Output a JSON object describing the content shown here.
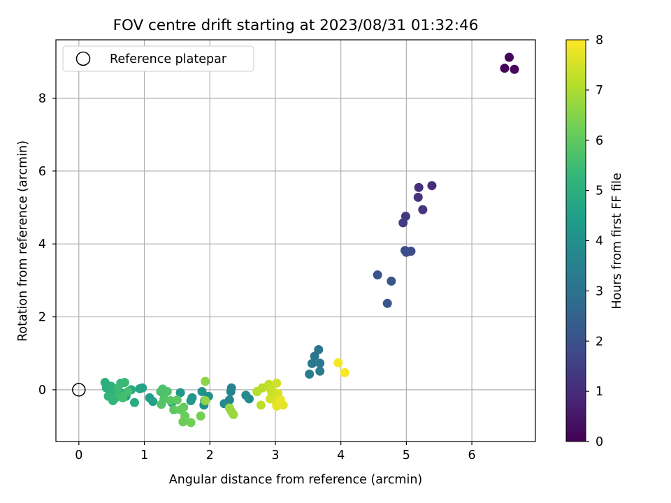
{
  "chart_data": {
    "type": "scatter",
    "title": "FOV centre drift starting at 2023/08/31 01:32:46",
    "xlabel": "Angular distance from reference (arcmin)",
    "ylabel": "Rotation from reference (arcmin)",
    "xlim": [
      -0.35,
      6.97
    ],
    "ylim": [
      -1.42,
      9.6
    ],
    "xticks": [
      "0",
      "1",
      "2",
      "3",
      "4",
      "5",
      "6"
    ],
    "yticks": [
      "0",
      "2",
      "4",
      "6",
      "8"
    ],
    "grid": true,
    "legend": {
      "location": "upper-left",
      "entries": [
        "Reference platepar"
      ]
    },
    "reference_point": {
      "x": 0,
      "y": 0
    },
    "colorbar": {
      "label": "Hours from first FF file",
      "min": 0,
      "max": 8,
      "ticks": [
        "0",
        "1",
        "2",
        "3",
        "4",
        "5",
        "6",
        "7",
        "8"
      ],
      "colormap": "viridis",
      "stops": [
        "#440154",
        "#482878",
        "#3e4989",
        "#31688e",
        "#26828e",
        "#1f9e89",
        "#35b779",
        "#6ece58",
        "#b5de2b",
        "#fde725"
      ]
    },
    "points": [
      {
        "x": 6.5,
        "y": 8.82,
        "h": 0.05
      },
      {
        "x": 6.57,
        "y": 9.12,
        "h": 0.1
      },
      {
        "x": 6.65,
        "y": 8.79,
        "h": 0.15
      },
      {
        "x": 5.39,
        "y": 5.6,
        "h": 1.0
      },
      {
        "x": 5.19,
        "y": 5.55,
        "h": 1.1
      },
      {
        "x": 5.18,
        "y": 5.28,
        "h": 1.15
      },
      {
        "x": 5.25,
        "y": 4.94,
        "h": 1.2
      },
      {
        "x": 4.99,
        "y": 4.76,
        "h": 1.35
      },
      {
        "x": 4.95,
        "y": 4.58,
        "h": 1.4
      },
      {
        "x": 4.98,
        "y": 3.82,
        "h": 1.9
      },
      {
        "x": 5.07,
        "y": 3.8,
        "h": 1.85
      },
      {
        "x": 5.0,
        "y": 3.77,
        "h": 1.95
      },
      {
        "x": 4.56,
        "y": 3.15,
        "h": 2.1
      },
      {
        "x": 4.77,
        "y": 2.98,
        "h": 2.15
      },
      {
        "x": 4.71,
        "y": 2.37,
        "h": 2.2
      },
      {
        "x": 3.66,
        "y": 1.1,
        "h": 3.1
      },
      {
        "x": 3.6,
        "y": 0.92,
        "h": 3.15
      },
      {
        "x": 3.56,
        "y": 0.72,
        "h": 3.2
      },
      {
        "x": 3.68,
        "y": 0.73,
        "h": 3.25
      },
      {
        "x": 3.52,
        "y": 0.43,
        "h": 3.3
      },
      {
        "x": 3.68,
        "y": 0.51,
        "h": 3.35
      },
      {
        "x": 3.96,
        "y": 0.74,
        "h": 7.9
      },
      {
        "x": 4.06,
        "y": 0.47,
        "h": 7.95
      },
      {
        "x": 2.33,
        "y": 0.05,
        "h": 3.6
      },
      {
        "x": 2.32,
        "y": -0.05,
        "h": 3.65
      },
      {
        "x": 2.3,
        "y": -0.28,
        "h": 3.7
      },
      {
        "x": 2.22,
        "y": -0.38,
        "h": 3.75
      },
      {
        "x": 2.55,
        "y": -0.15,
        "h": 3.8
      },
      {
        "x": 2.6,
        "y": -0.25,
        "h": 3.85
      },
      {
        "x": 1.92,
        "y": -0.3,
        "h": 3.9
      },
      {
        "x": 1.91,
        "y": -0.42,
        "h": 3.95
      },
      {
        "x": 1.98,
        "y": -0.18,
        "h": 4.0
      },
      {
        "x": 1.88,
        "y": -0.05,
        "h": 4.1
      },
      {
        "x": 1.73,
        "y": -0.22,
        "h": 4.2
      },
      {
        "x": 1.71,
        "y": -0.3,
        "h": 4.25
      },
      {
        "x": 1.55,
        "y": -0.08,
        "h": 4.3
      },
      {
        "x": 1.42,
        "y": -0.35,
        "h": 4.4
      },
      {
        "x": 1.08,
        "y": -0.22,
        "h": 4.5
      },
      {
        "x": 1.13,
        "y": -0.32,
        "h": 4.55
      },
      {
        "x": 0.97,
        "y": 0.05,
        "h": 4.6
      },
      {
        "x": 0.93,
        "y": 0.03,
        "h": 4.65
      },
      {
        "x": 0.72,
        "y": -0.18,
        "h": 4.7
      },
      {
        "x": 0.66,
        "y": -0.1,
        "h": 4.75
      },
      {
        "x": 0.8,
        "y": 0.0,
        "h": 4.8
      },
      {
        "x": 0.85,
        "y": -0.35,
        "h": 4.9
      },
      {
        "x": 0.4,
        "y": 0.2,
        "h": 5.0
      },
      {
        "x": 0.42,
        "y": 0.05,
        "h": 5.05
      },
      {
        "x": 0.49,
        "y": 0.1,
        "h": 5.1
      },
      {
        "x": 0.53,
        "y": -0.05,
        "h": 5.15
      },
      {
        "x": 0.45,
        "y": -0.18,
        "h": 5.2
      },
      {
        "x": 0.56,
        "y": -0.22,
        "h": 5.25
      },
      {
        "x": 0.52,
        "y": -0.3,
        "h": 5.3
      },
      {
        "x": 0.64,
        "y": 0.18,
        "h": 5.35
      },
      {
        "x": 0.7,
        "y": 0.2,
        "h": 5.4
      },
      {
        "x": 0.6,
        "y": 0.05,
        "h": 5.45
      },
      {
        "x": 0.62,
        "y": -0.15,
        "h": 5.5
      },
      {
        "x": 0.67,
        "y": -0.22,
        "h": 5.55
      },
      {
        "x": 0.75,
        "y": -0.05,
        "h": 5.6
      },
      {
        "x": 1.25,
        "y": -0.05,
        "h": 5.65
      },
      {
        "x": 1.28,
        "y": 0.02,
        "h": 5.7
      },
      {
        "x": 1.35,
        "y": -0.05,
        "h": 5.75
      },
      {
        "x": 1.3,
        "y": -0.25,
        "h": 5.8
      },
      {
        "x": 1.26,
        "y": -0.4,
        "h": 5.85
      },
      {
        "x": 1.4,
        "y": -0.3,
        "h": 5.9
      },
      {
        "x": 1.5,
        "y": -0.28,
        "h": 5.95
      },
      {
        "x": 1.45,
        "y": -0.55,
        "h": 6.0
      },
      {
        "x": 1.55,
        "y": -0.55,
        "h": 6.05
      },
      {
        "x": 1.6,
        "y": -0.48,
        "h": 6.1
      },
      {
        "x": 1.62,
        "y": -0.72,
        "h": 6.15
      },
      {
        "x": 1.59,
        "y": -0.88,
        "h": 6.2
      },
      {
        "x": 1.71,
        "y": -0.9,
        "h": 6.25
      },
      {
        "x": 1.86,
        "y": -0.72,
        "h": 6.3
      },
      {
        "x": 1.93,
        "y": 0.23,
        "h": 6.6
      },
      {
        "x": 1.93,
        "y": -0.3,
        "h": 6.65
      },
      {
        "x": 2.3,
        "y": -0.5,
        "h": 6.7
      },
      {
        "x": 2.33,
        "y": -0.6,
        "h": 6.75
      },
      {
        "x": 2.36,
        "y": -0.68,
        "h": 6.8
      },
      {
        "x": 2.72,
        "y": -0.05,
        "h": 7.1
      },
      {
        "x": 2.8,
        "y": 0.05,
        "h": 7.15
      },
      {
        "x": 2.78,
        "y": -0.42,
        "h": 7.2
      },
      {
        "x": 2.9,
        "y": 0.15,
        "h": 7.25
      },
      {
        "x": 2.93,
        "y": 0.0,
        "h": 7.3
      },
      {
        "x": 2.95,
        "y": -0.1,
        "h": 7.35
      },
      {
        "x": 2.92,
        "y": -0.25,
        "h": 7.4
      },
      {
        "x": 3.02,
        "y": 0.18,
        "h": 7.45
      },
      {
        "x": 3.04,
        "y": -0.1,
        "h": 7.5
      },
      {
        "x": 3.0,
        "y": -0.3,
        "h": 7.55
      },
      {
        "x": 3.06,
        "y": -0.38,
        "h": 7.6
      },
      {
        "x": 3.12,
        "y": -0.42,
        "h": 7.65
      },
      {
        "x": 3.02,
        "y": -0.45,
        "h": 7.7
      },
      {
        "x": 3.08,
        "y": -0.28,
        "h": 7.75
      }
    ]
  }
}
